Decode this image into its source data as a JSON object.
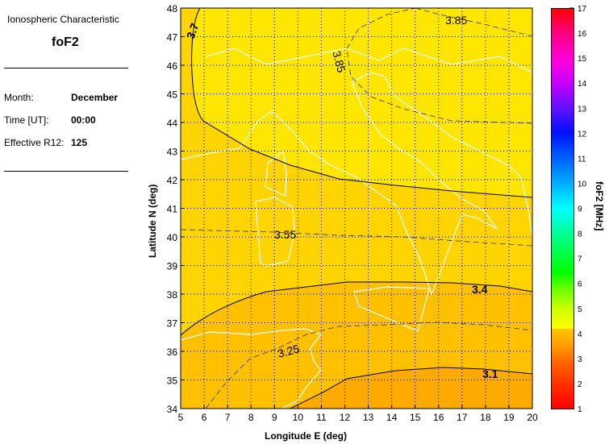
{
  "panel": {
    "heading": "Ionospheric Characteristic",
    "characteristic": "foF2",
    "month_label": "Month:",
    "month": "December",
    "time_label": "Time [UT]:",
    "time": "00:00",
    "r12_label": "Effective R12:",
    "r12": "125"
  },
  "chart_data": {
    "type": "heatmap",
    "xlabel": "Longitude E (deg)",
    "ylabel": "Latitude N (deg)",
    "xlim": [
      5,
      20
    ],
    "ylim": [
      34,
      48
    ],
    "xticks": [
      5,
      6,
      7,
      8,
      9,
      10,
      11,
      12,
      13,
      14,
      15,
      16,
      17,
      18,
      19,
      20
    ],
    "yticks": [
      34,
      35,
      36,
      37,
      38,
      39,
      40,
      41,
      42,
      43,
      44,
      45,
      46,
      47,
      48
    ],
    "grid": true,
    "contours": [
      {
        "level": 3.85,
        "label": "3.85",
        "style": "dashed"
      },
      {
        "level": 3.7,
        "label": "3.7",
        "style": "solid"
      },
      {
        "level": 3.55,
        "label": "3.55",
        "style": "dashed"
      },
      {
        "level": 3.4,
        "label": "3.4",
        "style": "solid"
      },
      {
        "level": 3.25,
        "label": "3.25",
        "style": "dashed"
      },
      {
        "level": 3.1,
        "label": "3.1",
        "style": "solid"
      }
    ],
    "fill_colors": {
      "above_3.7": "#ffe600",
      "3.4_3.7": "#ffd400",
      "3.1_3.4": "#ffc000",
      "below_3.1": "#ffaa00"
    },
    "coastline_color": "#ffffff",
    "colorbar": {
      "label": "foF2 [MHz]",
      "range": [
        1,
        17
      ],
      "ticks": [
        1,
        2,
        3,
        4,
        5,
        6,
        7,
        8,
        9,
        10,
        11,
        12,
        13,
        14,
        15,
        16,
        17
      ],
      "colormap": "red-orange-yellow-green-cyan-blue-magenta-red"
    }
  }
}
